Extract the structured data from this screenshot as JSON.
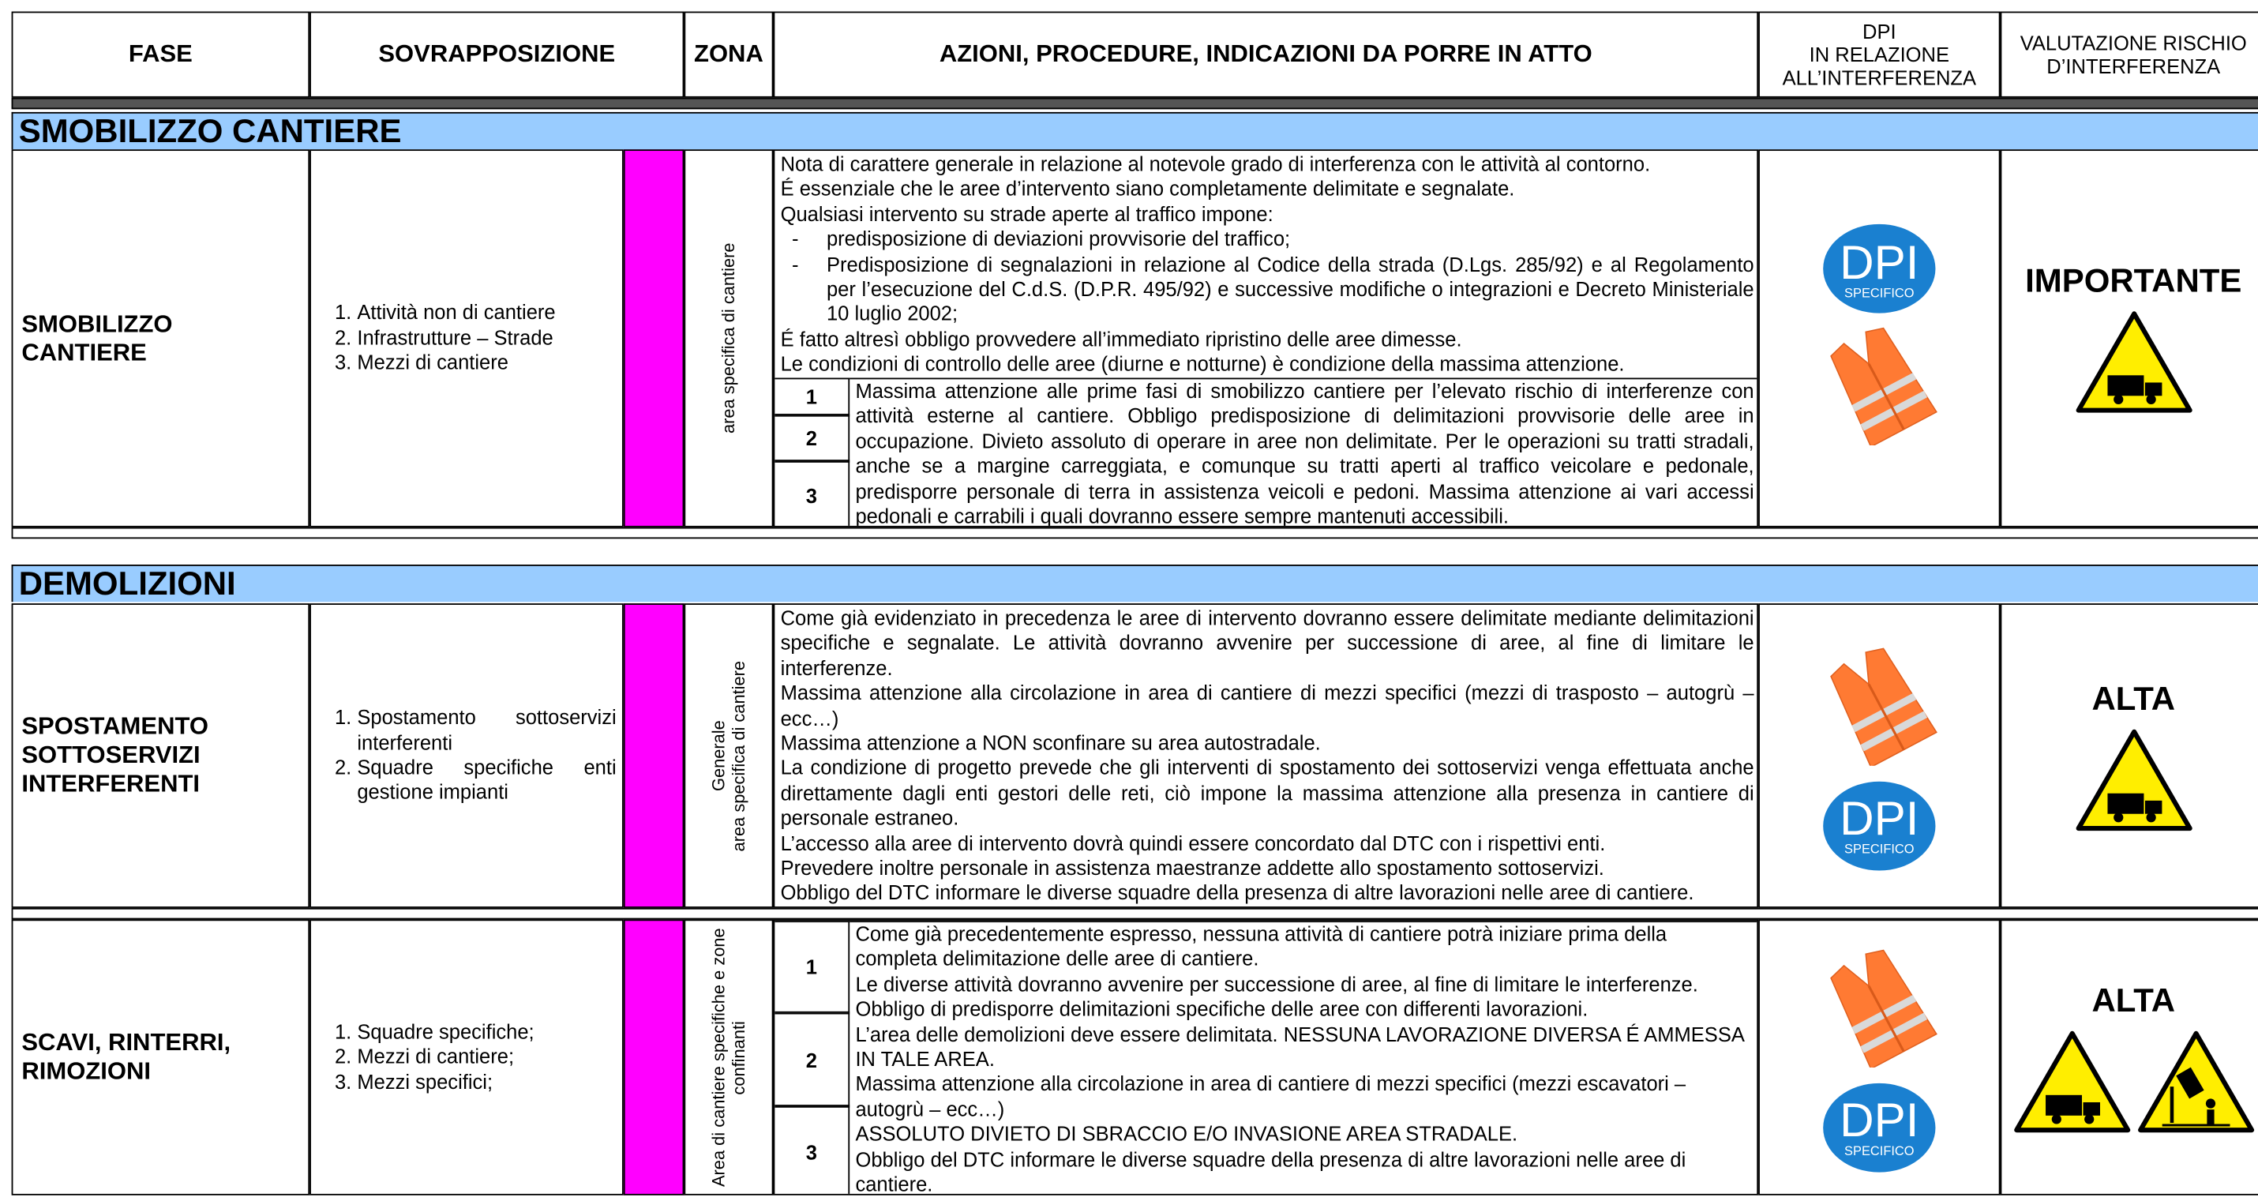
{
  "header": {
    "fase": "FASE",
    "sovrapposizione": "SOVRAPPOSIZIONE",
    "zona": "ZONA",
    "azioni": "AZIONI, PROCEDURE, INDICAZIONI DA PORRE IN ATTO",
    "dpi": [
      "DPI",
      "IN RELAZIONE",
      "ALL’INTERFERENZA"
    ],
    "valutazione": [
      "VALUTAZIONE RISCHIO",
      "D’INTERFERENZA"
    ]
  },
  "dpi_badge": {
    "title": "DPI",
    "subtitle": "SPECIFICO"
  },
  "sections": [
    {
      "title": "SMOBILIZZO CANTIERE",
      "rows": [
        {
          "fase": [
            "SMOBILIZZO",
            "CANTIERE"
          ],
          "sovrapposizione": [
            "Attività non di cantiere",
            "Infrastrutture – Strade",
            "Mezzi di cantiere"
          ],
          "zona": [
            "area specifica di cantiere"
          ],
          "azioni": {
            "intro": [
              "Nota di carattere generale in relazione al notevole grado di interferenza con le attività al contorno.",
              "É essenziale che le aree d’intervento siano completamente delimitate e segnalate.",
              "Qualsiasi intervento su strade aperte al traffico impone:"
            ],
            "list": [
              "predisposizione di deviazioni provvisorie del traffico;",
              "Predisposizione di segnalazioni in relazione al Codice della strada (D.Lgs. 285/92) e al Regolamento per l’esecuzione del C.d.S. (D.P.R. 495/92) e successive modifiche o integrazioni e Decreto Ministeriale 10 luglio 2002;"
            ],
            "outro": [
              "É fatto altresì obbligo provvedere all’immediato ripristino delle aree dimesse.",
              "Le condizioni di controllo delle aree (diurne e notturne) è condizione della massima attenzione."
            ]
          },
          "steps": {
            "numbers": [
              1,
              2,
              3
            ],
            "text": [
              "Massima attenzione alle prime fasi di smobilizzo cantiere per l’elevato rischio di interferenze con attività esterne al cantiere. Obbligo predisposizione di delimitazioni provvisorie delle aree in occupazione. Divieto assoluto di operare in aree non delimitate. Per le operazioni su tratti stradali, anche se a margine carreggiata, e comunque su tratti aperti al traffico veicolare e pedonale, predisporre personale di terra in assistenza veicoli e pedoni. Massima attenzione ai vari accessi pedonali e carrabili i quali dovranno essere sempre mantenuti accessibili."
            ]
          },
          "valutazione": "IMPORTANTE"
        }
      ]
    },
    {
      "title": "DEMOLIZIONI",
      "rows": [
        {
          "fase": [
            "SPOSTAMENTO",
            "SOTTOSERVIZI",
            "INTERFERENTI"
          ],
          "sovrapposizione": [
            "Spostamento sottoservizi interferenti",
            "Squadre specifiche enti gestione impianti"
          ],
          "zona": [
            "Generale",
            "area specifica di cantiere"
          ],
          "azioni": {
            "intro": [
              "Come già evidenziato in precedenza le aree di intervento dovranno essere delimitate mediante delimitazioni specifiche e segnalate. Le attività dovranno avvenire per successione di aree, al fine di limitare le interferenze.",
              "Massima attenzione alla circolazione in area di cantiere di mezzi specifici (mezzi di trasposto – autogrù – ecc…)",
              "Massima attenzione a NON sconfinare su area autostradale.",
              "La condizione di progetto prevede che gli interventi di spostamento dei sottoservizi venga effettuata anche direttamente dagli enti gestori delle reti, ciò impone la massima attenzione alla presenza in cantiere di personale estraneo.",
              "L’accesso alla aree di intervento dovrà quindi essere concordato dal DTC con i rispettivi enti.",
              "Prevedere inoltre personale in assistenza maestranze addette allo spostamento sottoservizi.",
              "Obbligo del DTC informare le diverse squadre della presenza di altre lavorazioni nelle aree di cantiere."
            ]
          },
          "valutazione": "ALTA"
        },
        {
          "fase": [
            "SCAVI, RINTERRI,",
            "RIMOZIONI"
          ],
          "sovrapposizione": [
            "Squadre specifiche;",
            "Mezzi di cantiere;",
            "Mezzi specifici;"
          ],
          "zona": [
            "Area di cantiere specifiche e zone",
            "confinanti"
          ],
          "steps": {
            "numbers": [
              1,
              2,
              3
            ],
            "text": [
              "Come già precedentemente espresso, nessuna attività di cantiere potrà iniziare prima della completa delimitazione delle aree di cantiere.",
              "Le diverse attività dovranno avvenire per successione di aree, al fine di limitare le interferenze.",
              "Obbligo di predisporre delimitazioni specifiche delle aree con differenti lavorazioni.",
              "L’area delle demolizioni deve essere delimitata. NESSUNA LAVORAZIONE DIVERSA É AMMESSA IN TALE AREA.",
              "Massima attenzione alla circolazione in area di cantiere di mezzi specifici (mezzi escavatori – autogrù –  ecc…)",
              "ASSOLUTO DIVIETO DI SBRACCIO E/O INVASIONE AREA STRADALE.",
              "Obbligo del DTC informare le diverse squadre della presenza di altre lavorazioni nelle aree di cantiere."
            ]
          },
          "valutazione": "ALTA"
        }
      ]
    }
  ]
}
